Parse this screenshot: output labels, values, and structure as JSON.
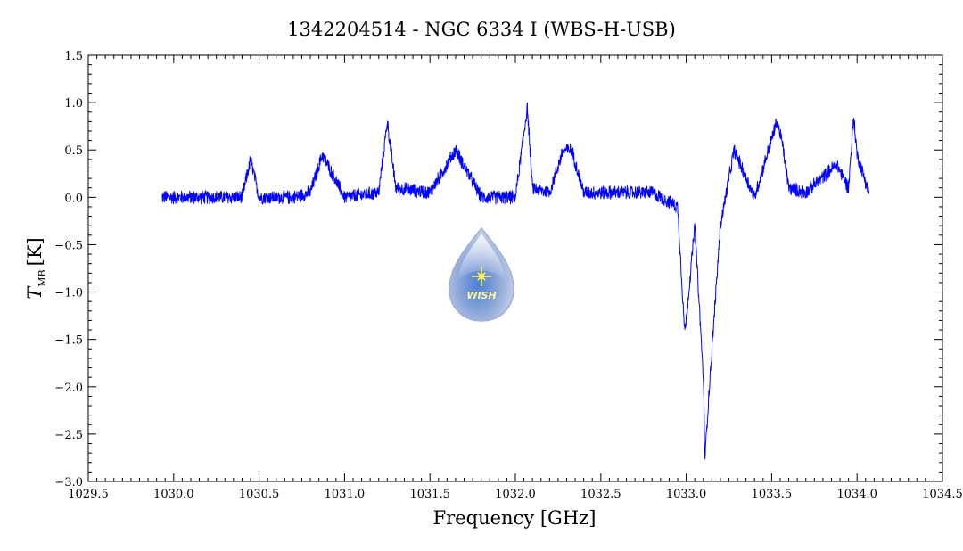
{
  "chart_data": {
    "type": "line",
    "title": "1342204514 - NGC 6334 I (WBS-H-USB)",
    "xlabel": "Frequency [GHz]",
    "ylabel_symbol": "T",
    "ylabel_subscript": "MB",
    "ylabel_unit": "[K]",
    "xlim": [
      1029.5,
      1034.5
    ],
    "ylim": [
      -3.0,
      1.5
    ],
    "xticks": [
      1029.5,
      1030.0,
      1030.5,
      1031.0,
      1031.5,
      1032.0,
      1032.5,
      1033.0,
      1033.5,
      1034.0,
      1034.5
    ],
    "xtick_labels": [
      "1029.5",
      "1030.0",
      "1030.5",
      "1031.0",
      "1031.5",
      "1032.0",
      "1032.5",
      "1033.0",
      "1033.5",
      "1034.0",
      "1034.5"
    ],
    "yticks": [
      1.5,
      1.0,
      0.5,
      0.0,
      -0.5,
      -1.0,
      -1.5,
      -2.0,
      -2.5,
      -3.0
    ],
    "ytick_labels": [
      "1.5",
      "1.0",
      "0.5",
      "0.0",
      "−0.5",
      "−1.0",
      "−1.5",
      "−2.0",
      "−2.5",
      "−3.0"
    ],
    "grid": false,
    "legend": "none",
    "line_color": "#0000ff",
    "noise_level_K": 0.05,
    "series": [
      {
        "x_start": 1029.93,
        "x_end": 1034.07,
        "x": [
          1029.93,
          1030.2,
          1030.4,
          1030.45,
          1030.5,
          1030.7,
          1030.8,
          1030.87,
          1031.0,
          1031.2,
          1031.25,
          1031.3,
          1031.5,
          1031.65,
          1031.8,
          1032.0,
          1032.07,
          1032.1,
          1032.2,
          1032.28,
          1032.33,
          1032.4,
          1032.5,
          1032.6,
          1032.8,
          1032.95,
          1032.99,
          1033.0,
          1033.05,
          1033.1,
          1033.11,
          1033.13,
          1033.2,
          1033.28,
          1033.4,
          1033.53,
          1033.56,
          1033.6,
          1033.7,
          1033.88,
          1033.95,
          1033.98,
          1034.0,
          1034.07
        ],
        "y": [
          0.0,
          0.0,
          0.0,
          0.4,
          0.0,
          0.0,
          0.05,
          0.45,
          0.0,
          0.05,
          0.8,
          0.1,
          0.05,
          0.5,
          0.0,
          0.0,
          0.95,
          0.1,
          0.05,
          0.5,
          0.5,
          0.05,
          0.05,
          0.05,
          0.05,
          -0.1,
          -1.4,
          -1.3,
          -0.3,
          -1.9,
          -2.75,
          -2.15,
          -0.3,
          0.5,
          0.0,
          0.8,
          0.6,
          0.1,
          0.05,
          0.35,
          0.1,
          0.85,
          0.45,
          0.05
        ]
      }
    ],
    "logo": {
      "text": "WISH",
      "colors": [
        "#dde6f7",
        "#8fa9d9",
        "#5f7fc0"
      ],
      "star_color": "#fff15a"
    }
  }
}
